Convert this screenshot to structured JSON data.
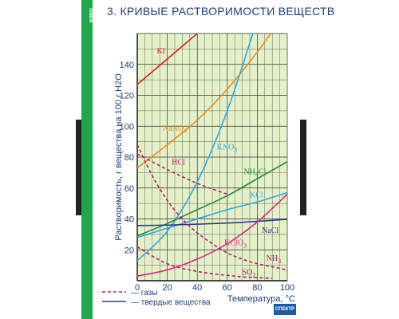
{
  "poster": {
    "title": "3. КРИВЫЕ РАСТВОРИМОСТИ ВЕЩЕСТВ",
    "left_strip_label": "ХИМИЯ",
    "footer_logo": "СПЕКТР"
  },
  "colors": {
    "plot_background": "#e4f0c8",
    "grid": "#333333",
    "strip_green": "#20a64a"
  },
  "chart_data": {
    "type": "line",
    "title": "3. КРИВЫЕ РАСТВОРИМОСТИ ВЕЩЕСТВ",
    "xlabel": "Температура, °C",
    "ylabel": "Растворимость, г вещества на 100 г H2O",
    "xlim": [
      0,
      100
    ],
    "ylim": [
      0,
      160
    ],
    "xticks": [
      0,
      20,
      40,
      60,
      80,
      100
    ],
    "yticks": [
      20,
      40,
      60,
      80,
      100,
      120,
      140
    ],
    "grid": true,
    "legend": {
      "position": "bottom-left",
      "items": [
        {
          "label": "газы",
          "style": "dashed"
        },
        {
          "label": "твердые вещества",
          "style": "solid"
        }
      ]
    },
    "series": [
      {
        "name": "KI",
        "color": "#d42020",
        "style": "solid",
        "x": [
          0,
          40
        ],
        "y": [
          127,
          160
        ],
        "label_x": 13,
        "label_y": 147
      },
      {
        "name": "NaNO3",
        "color": "#ee8a1c",
        "style": "solid",
        "x": [
          0,
          20,
          40,
          60,
          80,
          100
        ],
        "y": [
          73,
          88,
          104,
          124,
          148,
          175
        ],
        "label_x": 17,
        "label_y": 97
      },
      {
        "name": "KNO3",
        "color": "#2ea8e0",
        "style": "solid",
        "x": [
          0,
          20,
          40,
          60,
          80
        ],
        "y": [
          13,
          32,
          64,
          110,
          169
        ],
        "label_x": 53,
        "label_y": 85
      },
      {
        "name": "NH4Cl",
        "color": "#2a8a3a",
        "style": "solid",
        "x": [
          0,
          20,
          40,
          60,
          80,
          100
        ],
        "y": [
          29,
          37,
          46,
          55,
          66,
          77
        ],
        "label_x": 71,
        "label_y": 69
      },
      {
        "name": "KCl",
        "color": "#2ea8e0",
        "style": "solid",
        "x": [
          0,
          20,
          40,
          60,
          80,
          100
        ],
        "y": [
          28,
          34,
          40,
          46,
          51,
          57
        ],
        "label_x": 75,
        "label_y": 54
      },
      {
        "name": "NaCl",
        "color": "#2a3a8a",
        "style": "solid",
        "x": [
          0,
          20,
          40,
          60,
          80,
          100
        ],
        "y": [
          35.7,
          36,
          36.6,
          37.3,
          38.4,
          39.8
        ],
        "label_x": 83,
        "label_y": 31
      },
      {
        "name": "KClO3",
        "color": "#e0248a",
        "style": "solid",
        "x": [
          0,
          20,
          40,
          60,
          80,
          100
        ],
        "y": [
          3,
          7,
          14,
          24,
          38,
          56
        ],
        "label_x": 58,
        "label_y": 23
      },
      {
        "name": "HCl",
        "color": "#b0206a",
        "style": "dashed",
        "x": [
          0,
          20,
          40,
          60
        ],
        "y": [
          82,
          72,
          63,
          56
        ],
        "label_x": 23,
        "label_y": 75
      },
      {
        "name": "NH3",
        "color": "#b0206a",
        "style": "dashed",
        "x": [
          0,
          10,
          20,
          30,
          40,
          50,
          60,
          70,
          80,
          90,
          100
        ],
        "y": [
          88,
          68,
          52,
          40,
          31,
          24,
          18,
          14,
          11,
          9,
          7
        ],
        "label_x": 86,
        "label_y": 13
      },
      {
        "name": "SO2",
        "color": "#b0206a",
        "style": "dashed",
        "x": [
          0,
          10,
          20,
          30,
          40,
          50,
          60,
          70,
          80,
          90
        ],
        "y": [
          22,
          16,
          11,
          8,
          6,
          4.5,
          3.5,
          2.5,
          2,
          1.5
        ],
        "label_x": 70,
        "label_y": 4
      }
    ]
  }
}
